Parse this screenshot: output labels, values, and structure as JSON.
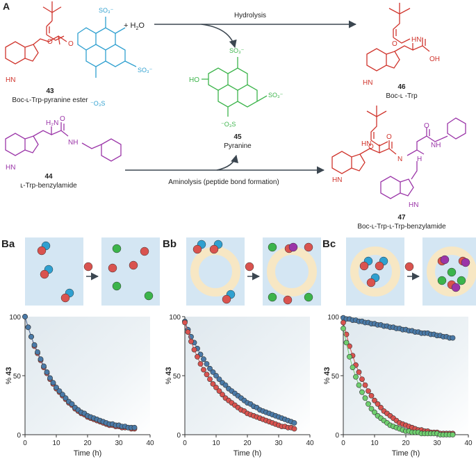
{
  "panel_a": {
    "label": "A",
    "reagent_water": "+ H",
    "reagent_water_sub": "2",
    "reagent_water_tail": "O",
    "hydrolysis": "Hydrolysis",
    "aminolysis": "Aminolysis (peptide bond formation)",
    "compounds": [
      {
        "num": "43",
        "name": "Boc-ʟ-Trp-pyranine ester"
      },
      {
        "num": "44",
        "name": "ʟ-Trp-benzylamide"
      },
      {
        "num": "45",
        "name": "Pyranine"
      },
      {
        "num": "46",
        "name": "Boc-ʟ -Trp"
      },
      {
        "num": "47",
        "name": "Boc-ʟ-Trp-ʟ-Trp-benzylamide"
      }
    ],
    "atoms": {
      "hn": "HN",
      "h2n": "H₂N",
      "nh": "NH",
      "h": "H",
      "o": "O",
      "oh": "OH",
      "ho": "HO",
      "n": "N",
      "so3": "SO₃⁻",
      "oso3": "⁻O₃S"
    }
  },
  "colors": {
    "red": "#d0342c",
    "blue": "#2fa0d0",
    "green": "#3cb44b",
    "purple": "#9b35a8",
    "gray": "#555555",
    "arrow": "#3b4650",
    "box": "#d4e6f3",
    "ring": "#f7e7c4",
    "dot_red": "#d9534f",
    "dot_blue": "#4a7aa8",
    "dot_green": "#6fcf6f"
  },
  "panels_b": [
    {
      "label": "Ba"
    },
    {
      "label": "Bb"
    },
    {
      "label": "Bc"
    }
  ],
  "axis": {
    "xlabel": "Time (h)",
    "ylabel_prefix": "% ",
    "ylabel_num": "43",
    "xticks": [
      "0",
      "10",
      "20",
      "30",
      "40"
    ],
    "yticks": [
      "0",
      "50",
      "100"
    ]
  },
  "chart_data": [
    {
      "type": "scatter",
      "xlim": [
        0,
        40
      ],
      "ylim": [
        0,
        100
      ],
      "series": [
        {
          "color": "red",
          "x": [
            0,
            1,
            2,
            3,
            4,
            5,
            6,
            7,
            8,
            9,
            10,
            11,
            12,
            13,
            14,
            15,
            16,
            17,
            18,
            19,
            20,
            21,
            22,
            23,
            24,
            25,
            26,
            27,
            28,
            29,
            30,
            31,
            32,
            33,
            34,
            35
          ],
          "y": [
            100,
            91,
            83,
            75,
            69,
            63,
            57,
            52,
            47,
            43,
            39,
            36,
            33,
            30,
            27,
            25,
            22,
            20,
            18,
            17,
            15,
            14,
            13,
            12,
            11,
            10,
            9,
            8,
            8,
            7,
            7,
            6,
            6,
            6,
            5,
            5
          ]
        },
        {
          "color": "blue",
          "x": [
            0,
            1,
            2,
            3,
            4,
            5,
            6,
            7,
            8,
            9,
            10,
            11,
            12,
            13,
            14,
            15,
            16,
            17,
            18,
            19,
            20,
            21,
            22,
            23,
            24,
            25,
            26,
            27,
            28,
            29,
            30,
            31,
            32,
            33,
            34,
            35
          ],
          "y": [
            100,
            91,
            83,
            76,
            70,
            64,
            58,
            53,
            48,
            44,
            40,
            37,
            34,
            31,
            28,
            26,
            23,
            21,
            19,
            18,
            16,
            15,
            14,
            13,
            12,
            11,
            10,
            9,
            9,
            8,
            8,
            7,
            7,
            6,
            6,
            6
          ]
        }
      ]
    },
    {
      "type": "scatter",
      "xlim": [
        0,
        40
      ],
      "ylim": [
        0,
        100
      ],
      "series": [
        {
          "color": "blue",
          "x": [
            0,
            1,
            2,
            3,
            4,
            5,
            6,
            7,
            8,
            9,
            10,
            11,
            12,
            13,
            14,
            15,
            16,
            17,
            18,
            19,
            20,
            21,
            22,
            23,
            24,
            25,
            26,
            27,
            28,
            29,
            30,
            31,
            32,
            33,
            34,
            35
          ],
          "y": [
            96,
            89,
            83,
            78,
            73,
            68,
            64,
            60,
            56,
            53,
            50,
            47,
            44,
            42,
            39,
            37,
            35,
            33,
            31,
            29,
            27,
            26,
            24,
            23,
            21,
            20,
            19,
            18,
            17,
            16,
            15,
            14,
            13,
            12,
            11,
            10
          ]
        },
        {
          "color": "red",
          "x": [
            0,
            1,
            2,
            3,
            4,
            5,
            6,
            7,
            8,
            9,
            10,
            11,
            12,
            13,
            14,
            15,
            16,
            17,
            18,
            19,
            20,
            21,
            22,
            23,
            24,
            25,
            26,
            27,
            28,
            29,
            30,
            31,
            32,
            33,
            34,
            35
          ],
          "y": [
            95,
            87,
            79,
            72,
            66,
            60,
            55,
            51,
            47,
            43,
            40,
            37,
            34,
            31,
            29,
            27,
            25,
            23,
            21,
            20,
            18,
            17,
            16,
            15,
            14,
            13,
            12,
            11,
            10,
            9,
            8,
            7,
            7,
            6,
            6,
            5
          ]
        }
      ]
    },
    {
      "type": "scatter",
      "xlim": [
        0,
        40
      ],
      "ylim": [
        0,
        100
      ],
      "series": [
        {
          "color": "blue",
          "x": [
            0,
            1,
            2,
            3,
            4,
            5,
            6,
            7,
            8,
            9,
            10,
            11,
            12,
            13,
            14,
            15,
            16,
            17,
            18,
            19,
            20,
            21,
            22,
            23,
            24,
            25,
            26,
            27,
            28,
            29,
            30,
            31,
            32,
            33,
            34,
            35
          ],
          "y": [
            99,
            98,
            98,
            97,
            97,
            96,
            96,
            95,
            95,
            94,
            94,
            93,
            93,
            92,
            92,
            91,
            91,
            90,
            90,
            89,
            89,
            88,
            88,
            87,
            87,
            86,
            86,
            86,
            85,
            85,
            84,
            84,
            83,
            83,
            82,
            82
          ]
        },
        {
          "color": "red",
          "x": [
            0,
            1,
            2,
            3,
            4,
            5,
            6,
            7,
            8,
            9,
            10,
            11,
            12,
            13,
            14,
            15,
            16,
            17,
            18,
            19,
            20,
            21,
            22,
            23,
            24,
            25,
            26,
            27,
            28,
            29,
            30,
            31,
            32,
            33,
            34,
            35
          ],
          "y": [
            95,
            85,
            75,
            67,
            59,
            53,
            47,
            42,
            37,
            33,
            29,
            26,
            23,
            20,
            18,
            16,
            14,
            12,
            10,
            9,
            8,
            7,
            6,
            5,
            4,
            4,
            3,
            3,
            2,
            2,
            2,
            1,
            1,
            1,
            1,
            1
          ]
        },
        {
          "color": "green",
          "x": [
            0,
            1,
            2,
            3,
            4,
            5,
            6,
            7,
            8,
            9,
            10,
            11,
            12,
            13,
            14,
            15,
            16,
            17,
            18,
            19,
            20,
            21,
            22,
            23,
            24,
            25,
            26,
            27,
            28,
            29,
            30,
            31,
            32,
            33,
            34,
            35
          ],
          "y": [
            90,
            78,
            66,
            57,
            49,
            42,
            36,
            31,
            26,
            22,
            19,
            16,
            14,
            12,
            10,
            8,
            7,
            6,
            5,
            4,
            3,
            3,
            2,
            2,
            2,
            1,
            1,
            1,
            1,
            1,
            1,
            0,
            0,
            0,
            0,
            0
          ]
        }
      ]
    }
  ]
}
